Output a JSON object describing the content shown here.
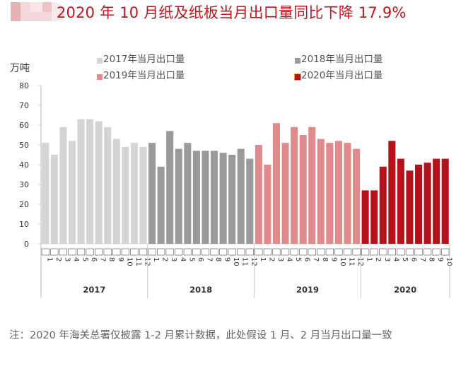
{
  "header": {
    "title": "2020 年 10 月纸及纸板当月出口量同比下降 17.9%"
  },
  "colors": {
    "title": "#c0131f",
    "s2017": "#d4d4d6",
    "s2018": "#9a999b",
    "s2019": "#e08a8c",
    "s2020": "#b5121b"
  },
  "note": "注：2020 年海关总署仅披露 1-2 月累计数据，此处假设 1 月、2 月当月出口量一致",
  "chart_data": {
    "type": "bar",
    "title": "2020 年 10 月纸及纸板当月出口量同比下降 17.9%",
    "ylabel": "万吨",
    "xlabel": "",
    "ylim": [
      0,
      80
    ],
    "yticks": [
      "0",
      "10",
      "20",
      "30",
      "40",
      "50",
      "60",
      "70",
      "80"
    ],
    "grid": false,
    "legend_position": "top",
    "legend": [
      {
        "label": "2017年当月出口量",
        "color": "#d4d4d6"
      },
      {
        "label": "2018年当月出口量",
        "color": "#9a999b"
      },
      {
        "label": "2019年当月出口量",
        "color": "#e08a8c"
      },
      {
        "label": "2020年当月出口量",
        "color": "#b5121b"
      }
    ],
    "series": [
      {
        "name": "2017年当月出口量",
        "year": "2017",
        "categories": [
          "1",
          "2",
          "3",
          "4",
          "5",
          "6",
          "7",
          "8",
          "9",
          "10",
          "11",
          "12"
        ],
        "values": [
          51,
          45,
          59,
          52,
          63,
          63,
          62,
          59,
          53,
          49,
          51,
          49
        ]
      },
      {
        "name": "2018年当月出口量",
        "year": "2018",
        "categories": [
          "1",
          "2",
          "3",
          "4",
          "5",
          "6",
          "7",
          "8",
          "9",
          "10",
          "11",
          "12"
        ],
        "values": [
          51,
          39,
          57,
          48,
          51,
          47,
          47,
          47,
          46,
          45,
          48,
          43
        ]
      },
      {
        "name": "2019年当月出口量",
        "year": "2019",
        "categories": [
          "1",
          "2",
          "3",
          "4",
          "5",
          "6",
          "7",
          "8",
          "9",
          "10",
          "11",
          "12"
        ],
        "values": [
          50,
          40,
          61,
          51,
          59,
          55,
          59,
          53,
          51,
          52,
          51,
          48
        ]
      },
      {
        "name": "2020年当月出口量",
        "year": "2020",
        "categories": [
          "1",
          "2",
          "3",
          "4",
          "5",
          "6",
          "7",
          "8",
          "9",
          "10"
        ],
        "values": [
          27,
          27,
          39,
          52,
          43,
          37,
          40,
          41,
          43,
          43
        ]
      }
    ]
  }
}
